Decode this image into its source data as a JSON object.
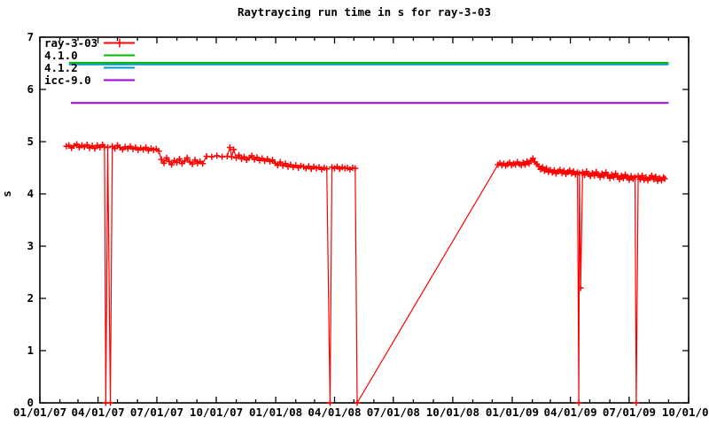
{
  "title": "Raytraycing run time in s for ray-3-03",
  "ylabel": "s",
  "legend": {
    "position": "top-left-inside",
    "items": [
      {
        "label": "ray-3-03"
      },
      {
        "label": "4.1.0"
      },
      {
        "label": "4.1.2"
      },
      {
        "label": "icc-9.0"
      }
    ]
  },
  "chart_data": {
    "type": "line",
    "title": "Raytraycing run time in s for ray-3-03",
    "xlabel": "",
    "ylabel": "s",
    "ylim": [
      0,
      7
    ],
    "grid": false,
    "legend_position": "top-left inside plot",
    "y_ticks": [
      "0",
      "1",
      "2",
      "3",
      "4",
      "5",
      "6",
      "7"
    ],
    "x_axis": {
      "unit": "days since 2007-01-01",
      "range_days": [
        0,
        1004
      ],
      "tick_days": [
        0,
        90,
        181,
        273,
        365,
        456,
        547,
        639,
        731,
        821,
        912,
        1004
      ],
      "minor_tick_days": [
        0,
        31,
        59,
        90,
        120,
        151,
        181,
        212,
        243,
        273,
        304,
        334,
        365,
        396,
        425,
        456,
        486,
        517,
        547,
        578,
        609,
        639,
        670,
        700,
        731,
        762,
        790,
        821,
        851,
        882,
        912,
        943,
        973,
        1004
      ],
      "tick_labels": [
        "01/01/07",
        "04/01/07",
        "07/01/07",
        "10/01/07",
        "01/01/08",
        "04/01/08",
        "07/01/08",
        "10/01/08",
        "01/01/09",
        "04/01/09",
        "07/01/09",
        "10/01/09"
      ]
    },
    "series": [
      {
        "name": "ray-3-03",
        "color": "#ff0000",
        "marker": "plus",
        "points": [
          [
            41,
            4.91
          ],
          [
            45,
            4.93
          ],
          [
            49,
            4.88
          ],
          [
            53,
            4.92
          ],
          [
            57,
            4.95
          ],
          [
            61,
            4.89
          ],
          [
            65,
            4.93
          ],
          [
            69,
            4.9
          ],
          [
            73,
            4.94
          ],
          [
            77,
            4.88
          ],
          [
            81,
            4.92
          ],
          [
            85,
            4.87
          ],
          [
            89,
            4.93
          ],
          [
            93,
            4.89
          ],
          [
            97,
            4.94
          ],
          [
            100,
            4.9
          ],
          [
            102,
            0.0
          ],
          [
            105,
            4.89
          ],
          [
            109,
            0.0
          ],
          [
            112,
            4.91
          ],
          [
            116,
            4.87
          ],
          [
            120,
            4.93
          ],
          [
            124,
            4.89
          ],
          [
            128,
            4.85
          ],
          [
            132,
            4.9
          ],
          [
            136,
            4.87
          ],
          [
            140,
            4.91
          ],
          [
            144,
            4.86
          ],
          [
            148,
            4.89
          ],
          [
            152,
            4.84
          ],
          [
            156,
            4.88
          ],
          [
            160,
            4.85
          ],
          [
            164,
            4.89
          ],
          [
            168,
            4.83
          ],
          [
            172,
            4.87
          ],
          [
            176,
            4.84
          ],
          [
            180,
            4.86
          ],
          [
            184,
            4.82
          ],
          [
            188,
            4.66
          ],
          [
            192,
            4.59
          ],
          [
            196,
            4.69
          ],
          [
            200,
            4.62
          ],
          [
            204,
            4.56
          ],
          [
            208,
            4.64
          ],
          [
            212,
            4.6
          ],
          [
            216,
            4.67
          ],
          [
            220,
            4.58
          ],
          [
            224,
            4.63
          ],
          [
            228,
            4.69
          ],
          [
            232,
            4.61
          ],
          [
            236,
            4.57
          ],
          [
            240,
            4.65
          ],
          [
            244,
            4.59
          ],
          [
            248,
            4.62
          ],
          [
            252,
            4.58
          ],
          [
            258,
            4.72
          ],
          [
            266,
            4.71
          ],
          [
            274,
            4.73
          ],
          [
            282,
            4.71
          ],
          [
            290,
            4.72
          ],
          [
            294,
            4.89
          ],
          [
            297,
            4.71
          ],
          [
            300,
            4.85
          ],
          [
            304,
            4.69
          ],
          [
            308,
            4.74
          ],
          [
            312,
            4.67
          ],
          [
            316,
            4.71
          ],
          [
            320,
            4.65
          ],
          [
            324,
            4.69
          ],
          [
            328,
            4.73
          ],
          [
            332,
            4.66
          ],
          [
            336,
            4.7
          ],
          [
            340,
            4.64
          ],
          [
            344,
            4.68
          ],
          [
            348,
            4.63
          ],
          [
            352,
            4.67
          ],
          [
            356,
            4.62
          ],
          [
            360,
            4.65
          ],
          [
            364,
            4.59
          ],
          [
            368,
            4.55
          ],
          [
            372,
            4.61
          ],
          [
            376,
            4.54
          ],
          [
            380,
            4.58
          ],
          [
            384,
            4.52
          ],
          [
            388,
            4.56
          ],
          [
            392,
            4.51
          ],
          [
            396,
            4.55
          ],
          [
            400,
            4.5
          ],
          [
            404,
            4.54
          ],
          [
            408,
            4.52
          ],
          [
            412,
            4.49
          ],
          [
            416,
            4.53
          ],
          [
            420,
            4.48
          ],
          [
            424,
            4.52
          ],
          [
            428,
            4.49
          ],
          [
            432,
            4.51
          ],
          [
            436,
            4.47
          ],
          [
            440,
            4.5
          ],
          [
            444,
            4.48
          ],
          [
            449,
            0.0
          ],
          [
            452,
            4.51
          ],
          [
            456,
            4.49
          ],
          [
            460,
            4.52
          ],
          [
            464,
            4.48
          ],
          [
            468,
            4.51
          ],
          [
            472,
            4.49
          ],
          [
            476,
            4.5
          ],
          [
            480,
            4.47
          ],
          [
            484,
            4.5
          ],
          [
            488,
            4.49
          ],
          [
            491,
            0.0
          ],
          [
            709,
            4.56
          ],
          [
            712,
            4.59
          ],
          [
            715,
            4.55
          ],
          [
            718,
            4.58
          ],
          [
            721,
            4.54
          ],
          [
            724,
            4.57
          ],
          [
            727,
            4.6
          ],
          [
            730,
            4.55
          ],
          [
            733,
            4.58
          ],
          [
            736,
            4.56
          ],
          [
            739,
            4.61
          ],
          [
            742,
            4.57
          ],
          [
            745,
            4.55
          ],
          [
            748,
            4.6
          ],
          [
            751,
            4.56
          ],
          [
            754,
            4.62
          ],
          [
            757,
            4.58
          ],
          [
            760,
            4.64
          ],
          [
            763,
            4.68
          ],
          [
            766,
            4.61
          ],
          [
            769,
            4.57
          ],
          [
            772,
            4.53
          ],
          [
            775,
            4.47
          ],
          [
            778,
            4.51
          ],
          [
            781,
            4.44
          ],
          [
            784,
            4.49
          ],
          [
            787,
            4.42
          ],
          [
            790,
            4.46
          ],
          [
            793,
            4.41
          ],
          [
            796,
            4.45
          ],
          [
            799,
            4.39
          ],
          [
            802,
            4.43
          ],
          [
            805,
            4.46
          ],
          [
            808,
            4.4
          ],
          [
            811,
            4.44
          ],
          [
            814,
            4.38
          ],
          [
            817,
            4.42
          ],
          [
            820,
            4.45
          ],
          [
            823,
            4.39
          ],
          [
            826,
            4.43
          ],
          [
            829,
            4.37
          ],
          [
            832,
            4.41
          ],
          [
            834,
            0.0
          ],
          [
            835,
            4.39
          ],
          [
            837,
            2.2
          ],
          [
            840,
            4.41
          ],
          [
            843,
            4.36
          ],
          [
            846,
            4.43
          ],
          [
            849,
            4.38
          ],
          [
            852,
            4.34
          ],
          [
            855,
            4.4
          ],
          [
            858,
            4.35
          ],
          [
            861,
            4.42
          ],
          [
            864,
            4.37
          ],
          [
            867,
            4.32
          ],
          [
            870,
            4.39
          ],
          [
            873,
            4.34
          ],
          [
            876,
            4.41
          ],
          [
            879,
            4.35
          ],
          [
            882,
            4.3
          ],
          [
            885,
            4.37
          ],
          [
            888,
            4.32
          ],
          [
            891,
            4.39
          ],
          [
            894,
            4.33
          ],
          [
            897,
            4.28
          ],
          [
            900,
            4.35
          ],
          [
            903,
            4.3
          ],
          [
            906,
            4.37
          ],
          [
            909,
            4.32
          ],
          [
            912,
            4.27
          ],
          [
            915,
            4.34
          ],
          [
            918,
            4.29
          ],
          [
            921,
            4.32
          ],
          [
            923,
            0.0
          ],
          [
            926,
            4.34
          ],
          [
            929,
            4.28
          ],
          [
            932,
            4.35
          ],
          [
            935,
            4.27
          ],
          [
            938,
            4.32
          ],
          [
            941,
            4.26
          ],
          [
            944,
            4.31
          ],
          [
            947,
            4.35
          ],
          [
            950,
            4.28
          ],
          [
            953,
            4.33
          ],
          [
            956,
            4.25
          ],
          [
            959,
            4.3
          ],
          [
            962,
            4.26
          ],
          [
            965,
            4.32
          ],
          [
            967,
            4.29
          ]
        ]
      },
      {
        "name": "4.1.0",
        "color": "#00bb00",
        "marker": null,
        "points": [
          [
            45,
            6.51
          ],
          [
            973,
            6.51
          ]
        ]
      },
      {
        "name": "4.1.2",
        "color": "#0099cc",
        "marker": null,
        "points": [
          [
            45,
            6.48
          ],
          [
            973,
            6.48
          ]
        ]
      },
      {
        "name": "icc-9.0",
        "color": "#a000e0",
        "marker": null,
        "points": [
          [
            48,
            5.74
          ],
          [
            973,
            5.74
          ]
        ]
      }
    ]
  }
}
